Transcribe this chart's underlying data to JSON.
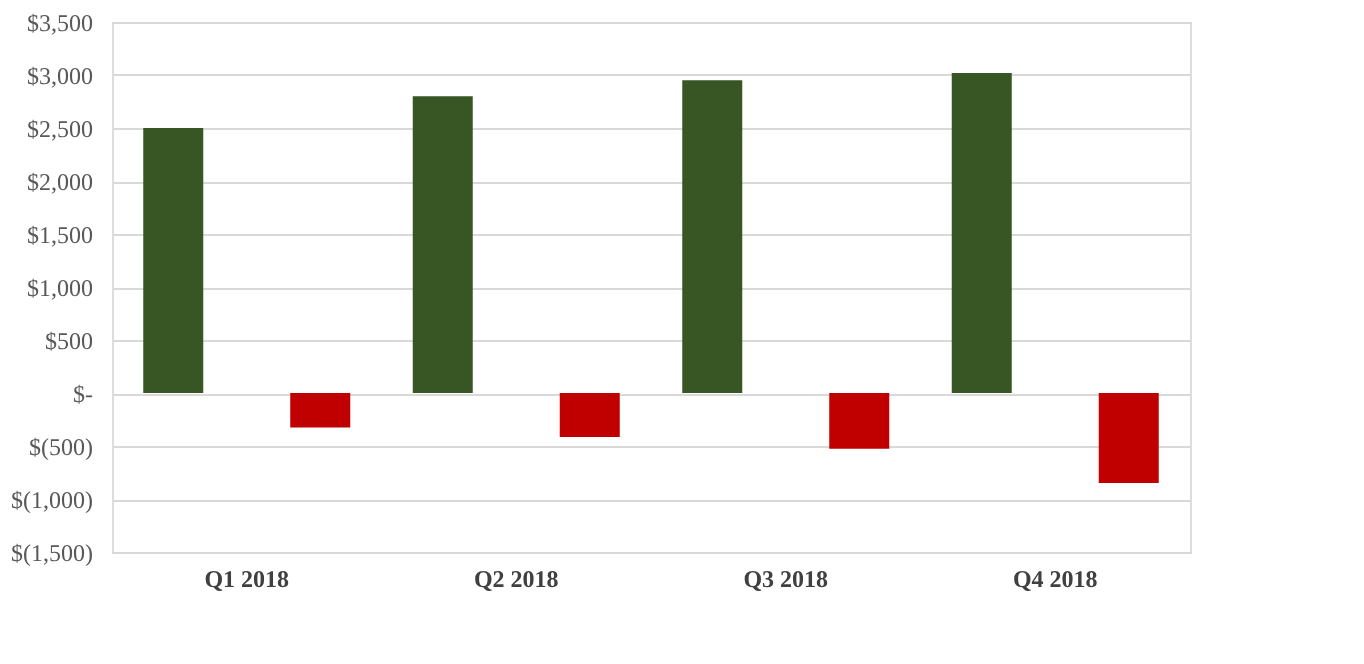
{
  "chart_data": {
    "type": "bar",
    "categories": [
      "Q1 2018",
      "Q2 2018",
      "Q3 2018",
      "Q4 2018"
    ],
    "series": [
      {
        "color": "#375623",
        "values": [
          2500,
          2800,
          2950,
          3020
        ]
      },
      {
        "color": "#c00000",
        "values": [
          -325,
          -415,
          -525,
          -850
        ]
      }
    ],
    "ylim": [
      -1500,
      3500
    ],
    "yticks": [
      {
        "value": -1500,
        "label": "$(1,500)"
      },
      {
        "value": -1000,
        "label": "$(1,000)"
      },
      {
        "value": -500,
        "label": "$(500)"
      },
      {
        "value": 0,
        "label": "$-"
      },
      {
        "value": 500,
        "label": "$500"
      },
      {
        "value": 1000,
        "label": "$1,000"
      },
      {
        "value": 1500,
        "label": "$1,500"
      },
      {
        "value": 2000,
        "label": "$2,000"
      },
      {
        "value": 2500,
        "label": "$2,500"
      },
      {
        "value": 3000,
        "label": "$3,000"
      },
      {
        "value": 3500,
        "label": "$3,500"
      }
    ],
    "grid": "y"
  }
}
